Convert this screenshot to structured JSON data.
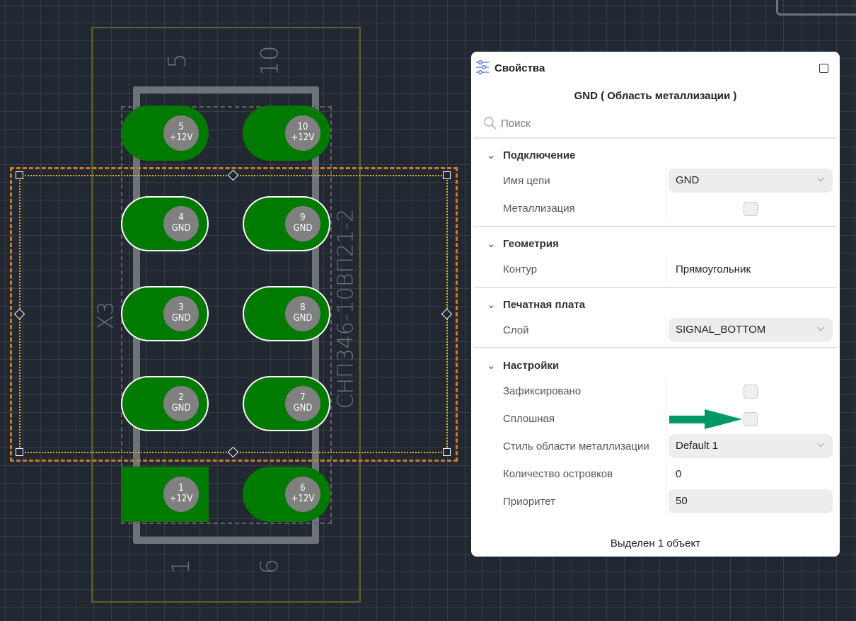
{
  "canvas": {
    "component_ref": "X3",
    "component_name": "СНП346-10ВП21-2",
    "pin_labels": {
      "top_left": "5",
      "top_right": "10",
      "bottom_left": "1",
      "bottom_right": "6"
    },
    "pads": [
      {
        "num": "5",
        "net": "+12V",
        "selected": false,
        "shape": "oval"
      },
      {
        "num": "10",
        "net": "+12V",
        "selected": false,
        "shape": "oval"
      },
      {
        "num": "4",
        "net": "GND",
        "selected": true,
        "shape": "oval"
      },
      {
        "num": "9",
        "net": "GND",
        "selected": true,
        "shape": "oval"
      },
      {
        "num": "3",
        "net": "GND",
        "selected": true,
        "shape": "oval"
      },
      {
        "num": "8",
        "net": "GND",
        "selected": true,
        "shape": "oval"
      },
      {
        "num": "2",
        "net": "GND",
        "selected": true,
        "shape": "oval"
      },
      {
        "num": "7",
        "net": "GND",
        "selected": true,
        "shape": "oval"
      },
      {
        "num": "1",
        "net": "+12V",
        "selected": false,
        "shape": "rect"
      },
      {
        "num": "6",
        "net": "+12V",
        "selected": false,
        "shape": "oval"
      }
    ],
    "colors": {
      "pad": "#007a00",
      "drill": "#808080",
      "selection": "#c87a30",
      "zone_outline": "#e6b800",
      "courtyard": "#6b6b2a"
    }
  },
  "panel": {
    "title": "Свойства",
    "subtitle": "GND ( Область металлизации )",
    "search_placeholder": "Поиск",
    "sections": {
      "connection": {
        "title": "Подключение",
        "net_label": "Имя цепи",
        "net_value": "GND",
        "fill_label": "Металлизация",
        "fill_checked": false
      },
      "geometry": {
        "title": "Геометрия",
        "contour_label": "Контур",
        "contour_value": "Прямоугольник"
      },
      "board": {
        "title": "Печатная плата",
        "layer_label": "Слой",
        "layer_value": "SIGNAL_BOTTOM"
      },
      "settings": {
        "title": "Настройки",
        "locked_label": "Зафиксировано",
        "locked_checked": false,
        "solid_label": "Сплошная",
        "solid_checked": false,
        "style_label": "Стиль области металлизации",
        "style_value": "Default 1",
        "islands_label": "Количество островков",
        "islands_value": "0",
        "priority_label": "Приоритет",
        "priority_value": "50"
      }
    },
    "footer": "Выделен 1 объект",
    "annotation_arrow_color": "#009966"
  }
}
